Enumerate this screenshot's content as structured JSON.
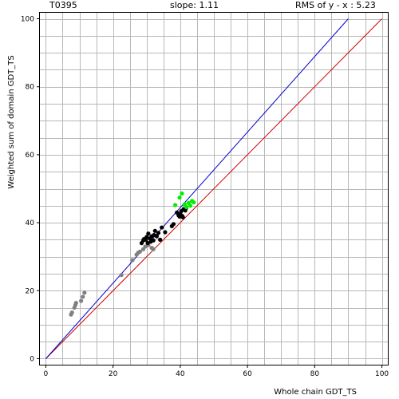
{
  "header": {
    "target": "T0395",
    "slope": "slope: 1.11",
    "rms": "RMS of  y - x : 5.23"
  },
  "chart_data": {
    "type": "scatter",
    "title": "",
    "xlabel": "Whole chain GDT_TS",
    "ylabel": "Weighted sum of domain GDT_TS",
    "xlim": [
      -2,
      102
    ],
    "ylim": [
      -2,
      102
    ],
    "x_ticks": [
      0,
      20,
      40,
      60,
      80,
      100
    ],
    "y_ticks": [
      0,
      20,
      40,
      60,
      80,
      100
    ],
    "grid": true,
    "reference_lines": [
      {
        "name": "y = x",
        "color": "#cc0000",
        "x": [
          0,
          100
        ],
        "y": [
          0,
          100
        ]
      },
      {
        "name": "fit",
        "color": "#0000cc",
        "x": [
          0,
          90
        ],
        "y": [
          0,
          100
        ]
      }
    ],
    "series": [
      {
        "color": "#808080",
        "points": [
          [
            7.5,
            13.0
          ],
          [
            7.8,
            13.6
          ],
          [
            8.5,
            15.0
          ],
          [
            8.8,
            15.8
          ],
          [
            9.0,
            16.4
          ],
          [
            10.5,
            17.0
          ],
          [
            11.0,
            18.2
          ],
          [
            11.5,
            19.4
          ],
          [
            22.5,
            24.6
          ],
          [
            25.8,
            29.0
          ],
          [
            27.0,
            30.6
          ],
          [
            27.5,
            31.2
          ],
          [
            28.0,
            31.5
          ],
          [
            29.0,
            32.2
          ],
          [
            29.6,
            33.0
          ],
          [
            30.5,
            33.4
          ],
          [
            31.5,
            32.6
          ],
          [
            32.0,
            32.2
          ]
        ]
      },
      {
        "color": "#000000",
        "points": [
          [
            28.5,
            34.0
          ],
          [
            29.0,
            34.8
          ],
          [
            29.2,
            35.2
          ],
          [
            29.8,
            35.0
          ],
          [
            30.0,
            35.8
          ],
          [
            30.3,
            34.0
          ],
          [
            30.5,
            36.8
          ],
          [
            31.0,
            35.4
          ],
          [
            31.2,
            34.4
          ],
          [
            31.5,
            36.0
          ],
          [
            32.0,
            34.8
          ],
          [
            32.2,
            36.4
          ],
          [
            32.5,
            37.6
          ],
          [
            33.0,
            36.0
          ],
          [
            33.5,
            37.0
          ],
          [
            34.0,
            35.0
          ],
          [
            34.5,
            38.6
          ],
          [
            35.5,
            37.2
          ],
          [
            37.5,
            39.0
          ],
          [
            38.0,
            39.6
          ],
          [
            39.0,
            43.0
          ],
          [
            39.5,
            42.2
          ],
          [
            39.8,
            41.8
          ],
          [
            40.0,
            42.6
          ],
          [
            40.3,
            43.4
          ],
          [
            40.6,
            42.0
          ],
          [
            41.0,
            44.0
          ],
          [
            41.5,
            43.6
          ],
          [
            41.8,
            44.4
          ],
          [
            40.8,
            41.6
          ]
        ]
      },
      {
        "color": "#00ee00",
        "points": [
          [
            38.5,
            45.2
          ],
          [
            39.8,
            47.4
          ],
          [
            40.5,
            48.6
          ],
          [
            41.3,
            45.4
          ],
          [
            41.8,
            44.6
          ],
          [
            42.5,
            45.8
          ],
          [
            43.0,
            45.0
          ],
          [
            43.5,
            46.4
          ],
          [
            44.0,
            46.0
          ]
        ]
      }
    ]
  }
}
